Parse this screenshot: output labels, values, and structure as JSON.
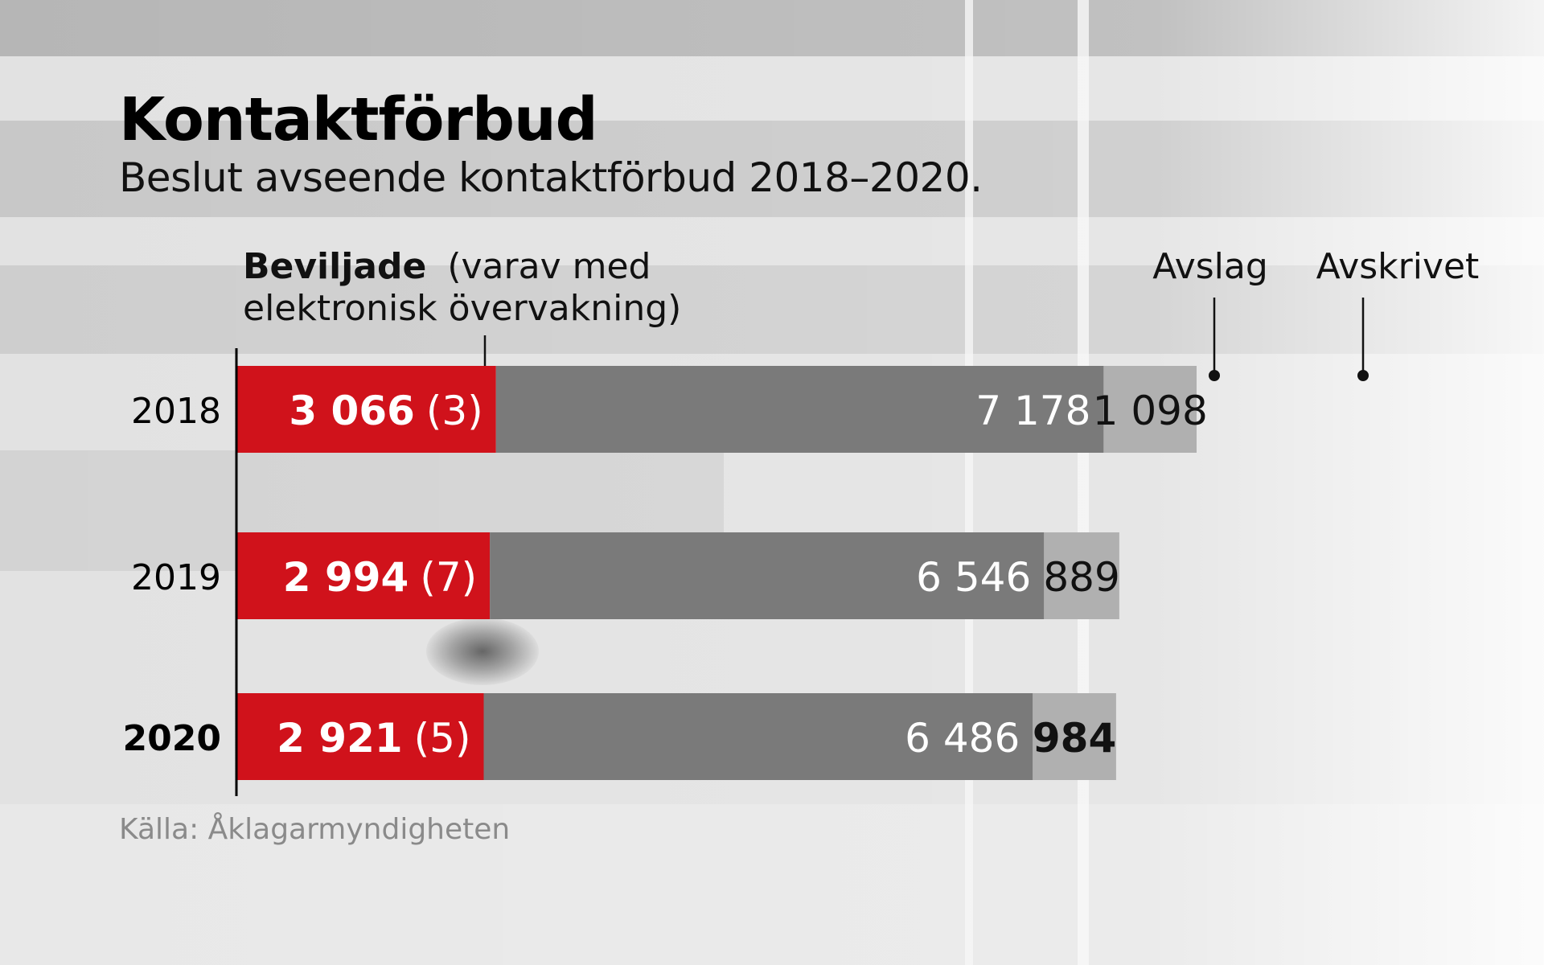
{
  "title": "Kontaktförbud",
  "subtitle": "Beslut avseende kontaktförbud 2018–2020.",
  "source": "Källa: Åklagarmyndigheten",
  "legend": {
    "beviljade_bold": "Beviljade",
    "beviljade_rest": "(varav med",
    "beviljade_line2": "elektronisk övervakning)",
    "avslag": "Avslag",
    "avskrivet": "Avskrivet"
  },
  "colors": {
    "beviljade": "#d0121b",
    "avslag": "#7a7a7a",
    "avskrivet": "#b0b0b0"
  },
  "chart_data": {
    "type": "bar",
    "orientation": "horizontal",
    "stacked": true,
    "categories": [
      "2018",
      "2019",
      "2020"
    ],
    "series": [
      {
        "name": "Beviljade",
        "values": [
          3066,
          2994,
          2921
        ],
        "labels": [
          "3 066",
          "2 994",
          "2 921"
        ]
      },
      {
        "name": "Avslag",
        "values": [
          7178,
          6546,
          6486
        ],
        "labels": [
          "7 178",
          "6 546",
          "6 486"
        ]
      },
      {
        "name": "Avskrivet",
        "values": [
          1098,
          889,
          984
        ],
        "labels": [
          "1 098",
          "889",
          "984"
        ]
      }
    ],
    "varav_elektronisk_overvakning": {
      "values": [
        3,
        7,
        5
      ],
      "labels": [
        "(3)",
        "(7)",
        "(5)"
      ]
    }
  }
}
